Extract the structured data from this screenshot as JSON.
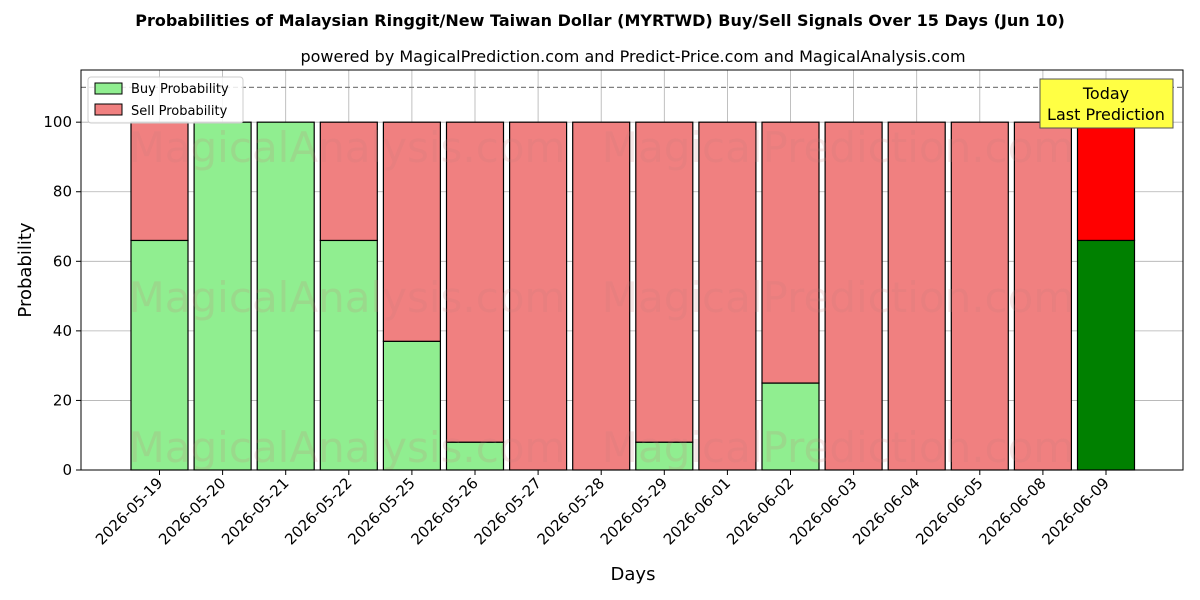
{
  "chart_data": {
    "type": "bar",
    "stacked": true,
    "title": "Probabilities of Malaysian Ringgit/New Taiwan Dollar (MYRTWD) Buy/Sell Signals Over 15 Days (Jun 10)",
    "subtitle": "powered by MagicalPrediction.com and Predict-Price.com and MagicalAnalysis.com",
    "xlabel": "Days",
    "ylabel": "Probability",
    "ylim": [
      0,
      115
    ],
    "yticks": [
      0,
      20,
      40,
      60,
      80,
      100
    ],
    "reference_line": 110,
    "grid": true,
    "legend_position": "top-left",
    "categories": [
      "2026-05-19",
      "2026-05-20",
      "2026-05-21",
      "2026-05-22",
      "2026-05-25",
      "2026-05-26",
      "2026-05-27",
      "2026-05-28",
      "2026-05-29",
      "2026-06-01",
      "2026-06-02",
      "2026-06-03",
      "2026-06-04",
      "2026-06-05",
      "2026-06-08",
      "2026-06-09"
    ],
    "series": [
      {
        "name": "Buy Probability",
        "color": "#90ee90",
        "highlight_color": "#008000",
        "values": [
          66,
          100,
          100,
          66,
          37,
          8,
          0,
          0,
          8,
          0,
          25,
          0,
          0,
          0,
          0,
          66
        ]
      },
      {
        "name": "Sell Probability",
        "color": "#f08080",
        "highlight_color": "#ff0000",
        "values": [
          34,
          0,
          0,
          34,
          63,
          92,
          100,
          100,
          92,
          100,
          75,
          100,
          100,
          100,
          100,
          34
        ]
      }
    ],
    "highlight_index": 15,
    "annotation": {
      "line1": "Today",
      "line2": "Last Prediction",
      "color": "#ffff44"
    },
    "watermarks": [
      "MagicalAnalysis.com",
      "MagicalPrediction.com"
    ]
  }
}
